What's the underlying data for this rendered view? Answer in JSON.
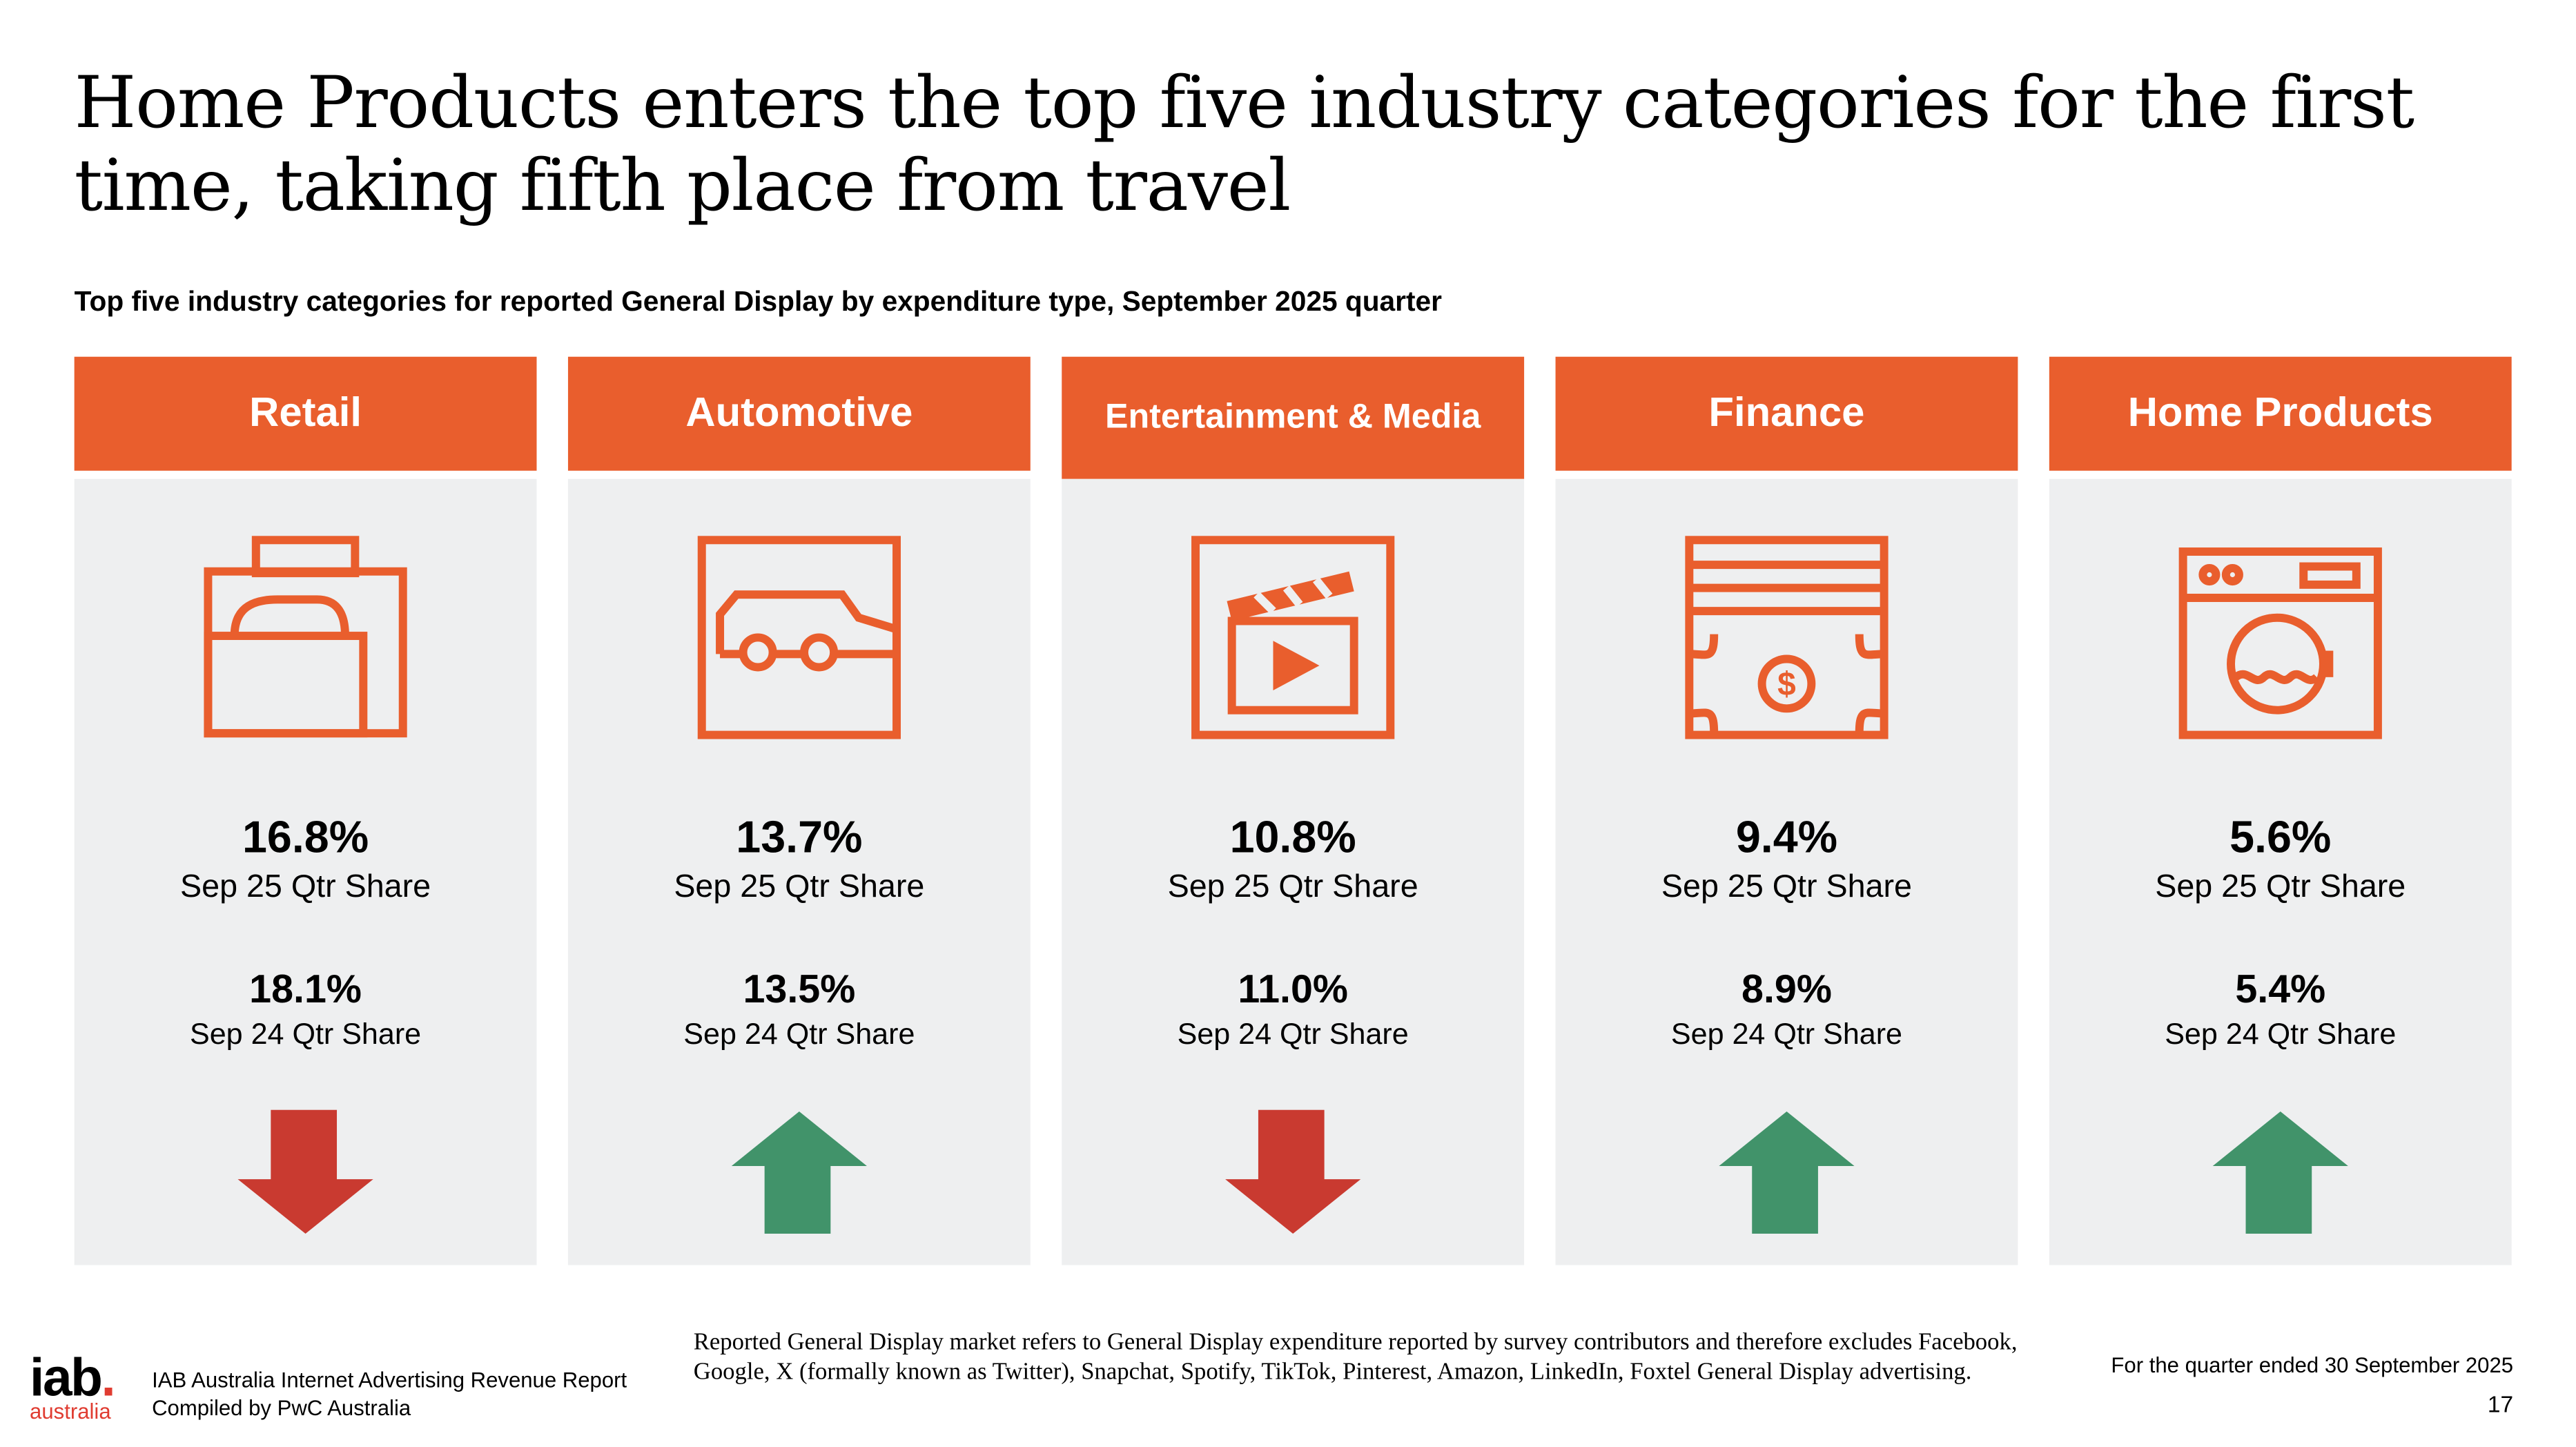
{
  "title": "Home Products enters the top five industry categories for the first time, taking fifth place from travel",
  "subtitle": "Top five industry categories for reported General Display by expenditure type, September 2025 quarter",
  "colors": {
    "accent": "#E95E2D",
    "panel": "#EEEFF0",
    "down": "#C93A30",
    "up": "#41936A"
  },
  "categories": [
    {
      "name": "Retail",
      "icon": "shopping-bags-icon",
      "current": "16.8%",
      "current_label": "Sep 25 Qtr Share",
      "previous": "18.1%",
      "previous_label": "Sep 24 Qtr Share",
      "trend": "down"
    },
    {
      "name": "Automotive",
      "icon": "car-icon",
      "current": "13.7%",
      "current_label": "Sep 25 Qtr Share",
      "previous": "13.5%",
      "previous_label": "Sep 24 Qtr Share",
      "trend": "up"
    },
    {
      "name": "Entertainment & Media",
      "icon": "clapperboard-icon",
      "current": "10.8%",
      "current_label": "Sep 25 Qtr Share",
      "previous": "11.0%",
      "previous_label": "Sep 24 Qtr Share",
      "trend": "down"
    },
    {
      "name": "Finance",
      "icon": "banknote-icon",
      "current": "9.4%",
      "current_label": "Sep 25 Qtr Share",
      "previous": "8.9%",
      "previous_label": "Sep 24 Qtr Share",
      "trend": "up"
    },
    {
      "name": "Home Products",
      "icon": "washing-machine-icon",
      "current": "5.6%",
      "current_label": "Sep 25 Qtr Share",
      "previous": "5.4%",
      "previous_label": "Sep 24 Qtr Share",
      "trend": "up"
    }
  ],
  "footer": {
    "logo_main": "iab",
    "logo_dot": ".",
    "logo_sub": "australia",
    "report_line1": "IAB Australia Internet Advertising Revenue Report",
    "report_line2": "Compiled by PwC Australia",
    "note": "Reported General Display market refers to General Display expenditure reported by survey contributors and therefore excludes Facebook, Google, X (formally known as Twitter), Snapchat, Spotify, TikTok, Pinterest, Amazon, LinkedIn, Foxtel General Display advertising.",
    "quarter": "For the quarter ended 30 September 2025",
    "page": "17"
  }
}
